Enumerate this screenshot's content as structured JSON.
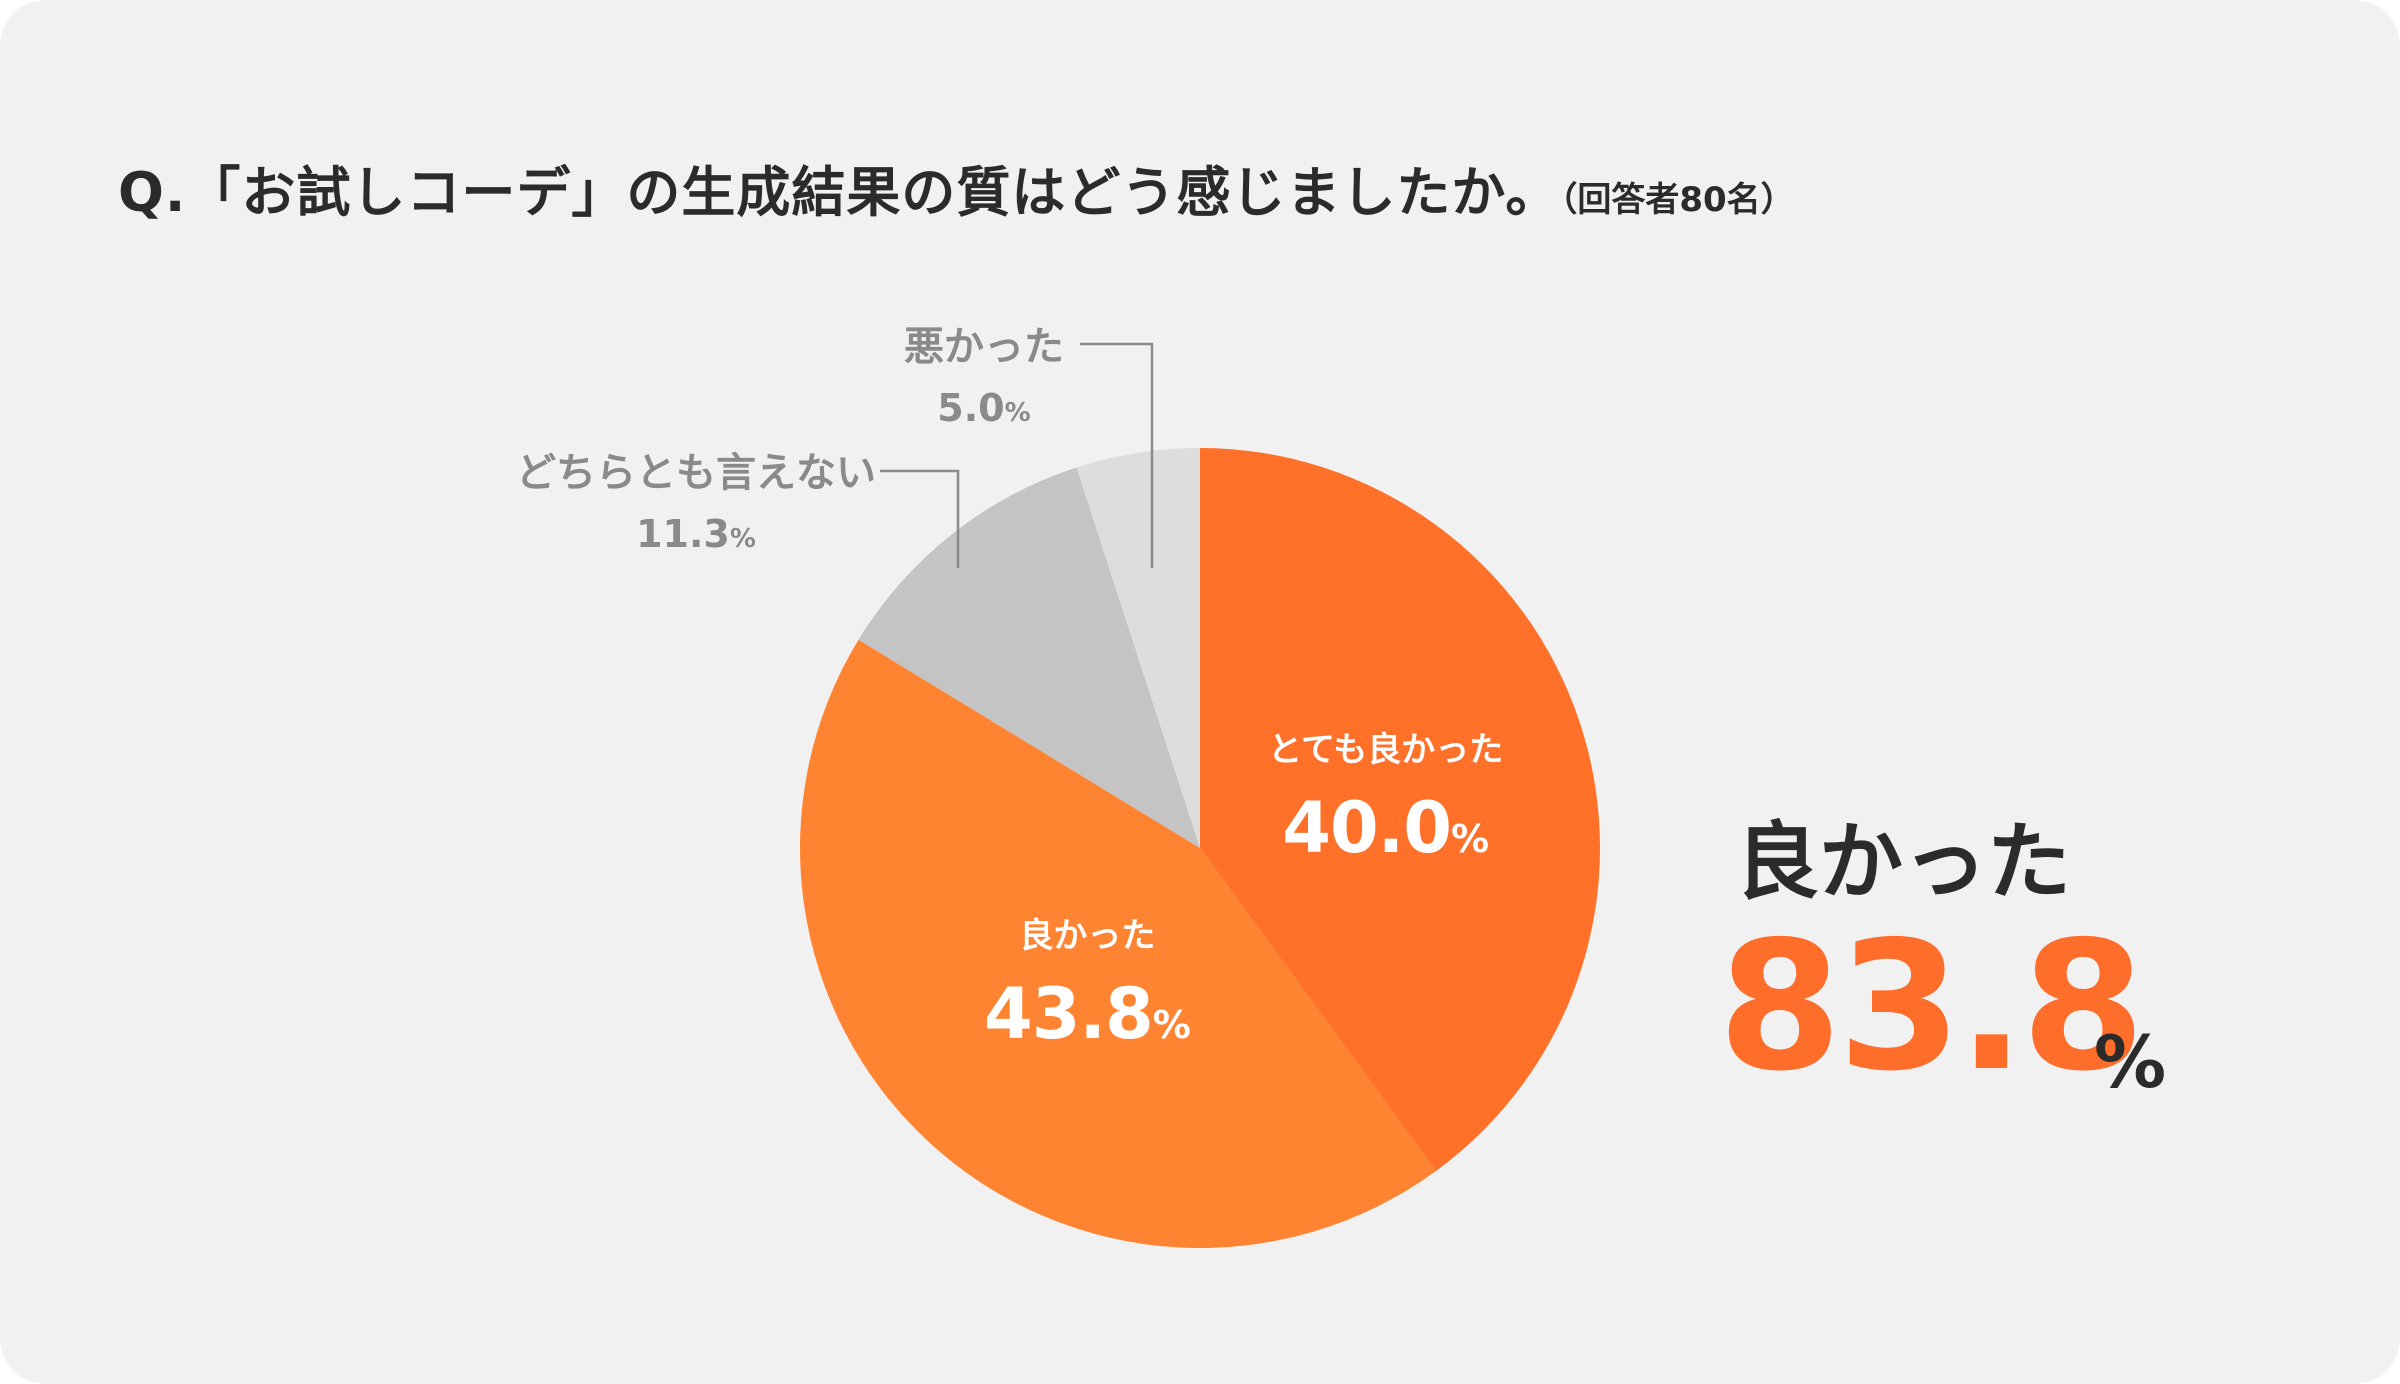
{
  "title": {
    "main": "Q.「お試しコーデ」の生成結果の質はどう感じましたか。",
    "sub": "（回答者80名）"
  },
  "chart_data": {
    "type": "pie",
    "categories": [
      "とても良かった",
      "良かった",
      "どちらとも言えない",
      "悪かった"
    ],
    "values": [
      40.0,
      43.8,
      11.3,
      5.0
    ],
    "value_labels": [
      "40.0",
      "43.8",
      "11.3",
      "5.0"
    ],
    "unit": "%",
    "colors": [
      "#ff7029",
      "#ff8432",
      "#c4c4c4",
      "#dddddd"
    ],
    "start": "12 o'clock, clockwise"
  },
  "summary": {
    "label": "良かった",
    "value": "83.8",
    "unit": "%"
  }
}
